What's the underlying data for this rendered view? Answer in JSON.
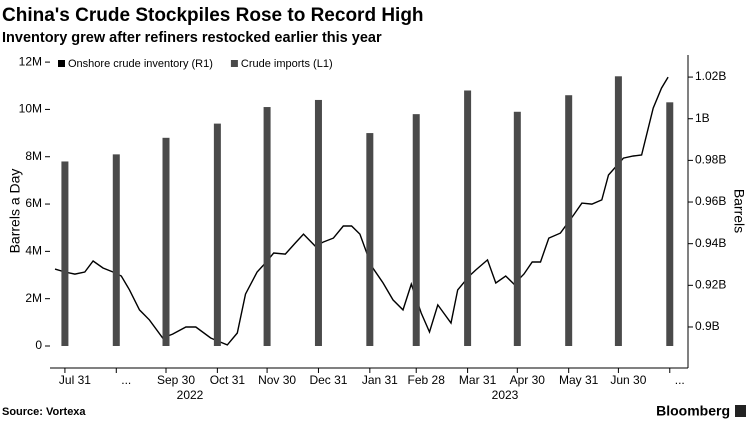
{
  "chart_data": {
    "type": "bar",
    "title": "China's Crude Stockpiles Rose to Record High",
    "subtitle": "Inventory grew after refiners restocked earlier this year",
    "y_label": "Barrels a Day",
    "y2_label": "Barrels",
    "source": "Source: Vortexa",
    "brand": "Bloomberg",
    "years": [
      "2022",
      "2023"
    ],
    "legend": "top-left",
    "xlim": [
      "2022-07-22",
      "2023-08-11"
    ],
    "xticks": [
      {
        "value": "2022-07-31",
        "label": "Jul 31"
      },
      {
        "value": "2022-08-31",
        "label": "..."
      },
      {
        "value": "2022-09-30",
        "label": "Sep 30"
      },
      {
        "value": "2022-10-31",
        "label": "Oct 31"
      },
      {
        "value": "2022-11-30",
        "label": "Nov 30"
      },
      {
        "value": "2022-12-31",
        "label": "Dec 31"
      },
      {
        "value": "2023-01-31",
        "label": "Jan 31"
      },
      {
        "value": "2023-02-28",
        "label": "Feb 28"
      },
      {
        "value": "2023-03-31",
        "label": "Mar 31"
      },
      {
        "value": "2023-04-30",
        "label": "Apr 30"
      },
      {
        "value": "2023-05-31",
        "label": "May 31"
      },
      {
        "value": "2023-06-30",
        "label": "Jun 30"
      },
      {
        "value": "2023-07-31",
        "label": "..."
      }
    ],
    "ylim": [
      -930000,
      12300000
    ],
    "yticks": [
      0,
      {
        "value": 2000000,
        "label": "2M"
      },
      {
        "value": 4000000,
        "label": "4M"
      },
      {
        "value": 6000000,
        "label": "6M"
      },
      {
        "value": 8000000,
        "label": "8M"
      },
      {
        "value": 10000000,
        "label": "10M"
      },
      {
        "value": 12000000,
        "label": "12M"
      }
    ],
    "y2lim": [
      880300000,
      1030600000
    ],
    "y2ticks": [
      {
        "value": 900000000,
        "label": "0.9B"
      },
      {
        "value": 920000000,
        "label": "0.92B"
      },
      {
        "value": 940000000,
        "label": "0.94B"
      },
      {
        "value": 960000000,
        "label": "0.96B"
      },
      {
        "value": 980000000,
        "label": "0.98B"
      },
      {
        "value": 1000000000,
        "label": "1B"
      },
      {
        "value": 1020000000,
        "label": "1.02B"
      }
    ],
    "series": [
      {
        "name": "Onshore crude inventory (R1)",
        "type": "line",
        "axis": "y2",
        "color": "#000000",
        "x": [
          "2022-07-25",
          "2022-07-31",
          "2022-08-06",
          "2022-08-12",
          "2022-08-17",
          "2022-08-23",
          "2022-08-29",
          "2022-09-03",
          "2022-09-08",
          "2022-09-14",
          "2022-09-20",
          "2022-09-28",
          "2022-10-04",
          "2022-10-12",
          "2022-10-18",
          "2022-10-27",
          "2022-10-31",
          "2022-11-06",
          "2022-11-12",
          "2022-11-17",
          "2022-11-24",
          "2022-11-29",
          "2022-12-04",
          "2022-12-11",
          "2022-12-17",
          "2022-12-22",
          "2022-12-29",
          "2023-01-03",
          "2023-01-09",
          "2023-01-15",
          "2023-01-20",
          "2023-01-25",
          "2023-02-01",
          "2023-02-08",
          "2023-02-14",
          "2023-02-20",
          "2023-02-25",
          "2023-03-03",
          "2023-03-08",
          "2023-03-13",
          "2023-03-21",
          "2023-03-25",
          "2023-04-01",
          "2023-04-05",
          "2023-04-12",
          "2023-04-17",
          "2023-04-23",
          "2023-04-28",
          "2023-05-04",
          "2023-05-09",
          "2023-05-14",
          "2023-05-19",
          "2023-05-26",
          "2023-06-03",
          "2023-06-08",
          "2023-06-14",
          "2023-06-20",
          "2023-06-24",
          "2023-07-03",
          "2023-07-09",
          "2023-07-14",
          "2023-07-21",
          "2023-07-26",
          "2023-07-30"
        ],
        "values": [
          927800000,
          926400000,
          925400000,
          926400000,
          931700000,
          928300000,
          926400000,
          924500000,
          917800000,
          908200000,
          903400000,
          894700000,
          896600000,
          900000000,
          900000000,
          894700000,
          893300000,
          891400000,
          897100000,
          915800000,
          926400000,
          930700000,
          935500000,
          935000000,
          940300000,
          944600000,
          938900000,
          940800000,
          942700000,
          948500000,
          948500000,
          944600000,
          929300000,
          921100000,
          913000000,
          908200000,
          920600000,
          906700000,
          897600000,
          910600000,
          901900000,
          917800000,
          924500000,
          927400000,
          932200000,
          921100000,
          924500000,
          920600000,
          925400000,
          931200000,
          931200000,
          942700000,
          945100000,
          953800000,
          959500000,
          959000000,
          961000000,
          973000000,
          981100000,
          982100000,
          982600000,
          1005100000,
          1014700000,
          1020000000
        ]
      },
      {
        "name": "Crude imports (L1)",
        "type": "bar",
        "axis": "y",
        "color": "#4a4a4a",
        "x": [
          "2022-07-31",
          "2022-08-31",
          "2022-09-30",
          "2022-10-31",
          "2022-11-30",
          "2022-12-31",
          "2023-01-31",
          "2023-02-28",
          "2023-03-31",
          "2023-04-30",
          "2023-05-31",
          "2023-06-30",
          "2023-07-31"
        ],
        "values": [
          7800000,
          8100000,
          8800000,
          9400000,
          10100000,
          10400000,
          9000000,
          9800000,
          10800000,
          9900000,
          10600000,
          11400000,
          10300000
        ]
      }
    ]
  }
}
